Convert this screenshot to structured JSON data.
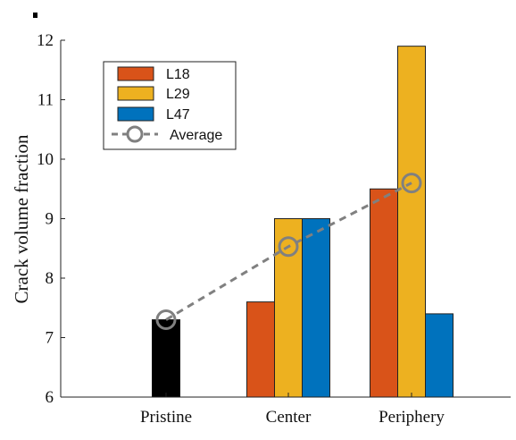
{
  "chart_data": {
    "type": "bar",
    "title": "",
    "xlabel": "",
    "ylabel": "Crack volume fraction",
    "ylim": [
      6,
      12
    ],
    "yticks": [
      6,
      7,
      8,
      9,
      10,
      11,
      12
    ],
    "categories": [
      "Pristine",
      "Center",
      "Periphery"
    ],
    "pristine": {
      "value": 7.3,
      "color": "#000000"
    },
    "series": [
      {
        "name": "L18",
        "color": "#d95319",
        "values": [
          null,
          7.6,
          9.5
        ]
      },
      {
        "name": "L29",
        "color": "#edb120",
        "values": [
          null,
          9.0,
          11.9
        ]
      },
      {
        "name": "L47",
        "color": "#0072bd",
        "values": [
          null,
          9.0,
          7.4
        ]
      }
    ],
    "average": {
      "name": "Average",
      "color": "#808080",
      "values": [
        7.3,
        8.53,
        9.6
      ]
    },
    "legend": {
      "position": "top-left",
      "entries": [
        "L18",
        "L29",
        "L47",
        "Average"
      ]
    },
    "grid": false
  }
}
